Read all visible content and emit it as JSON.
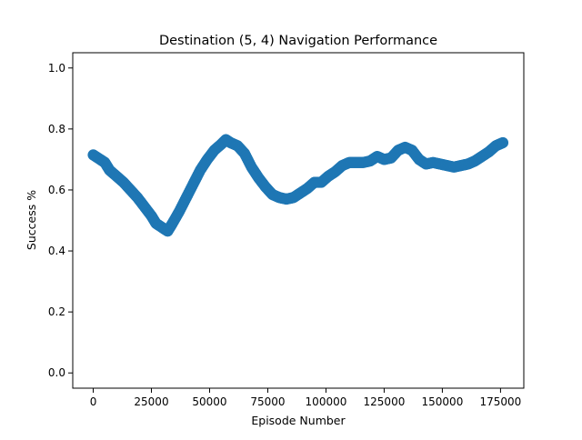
{
  "chart_data": {
    "type": "scatter",
    "title": "Destination (5, 4) Navigation Performance",
    "xlabel": "Episode Number",
    "ylabel": "Success %",
    "xlim": [
      -8800,
      185000
    ],
    "ylim": [
      -0.05,
      1.05
    ],
    "x_ticks": [
      0,
      25000,
      50000,
      75000,
      100000,
      125000,
      150000,
      175000
    ],
    "y_ticks": [
      0.0,
      0.2,
      0.4,
      0.6,
      0.8,
      1.0
    ],
    "x_tick_labels": [
      "0",
      "25000",
      "50000",
      "75000",
      "100000",
      "125000",
      "150000",
      "175000"
    ],
    "y_tick_labels": [
      "0.0",
      "0.2",
      "0.4",
      "0.6",
      "0.8",
      "1.0"
    ],
    "grid": false,
    "legend": "none",
    "marker_color": "#1f77b4",
    "series": [
      {
        "x": [
          0,
          3000,
          5000,
          7000,
          10000,
          13000,
          16000,
          19000,
          22000,
          25000,
          27000,
          30000,
          32000,
          34000,
          37000,
          40000,
          43000,
          46000,
          49000,
          52000,
          55000,
          57000,
          59000,
          62000,
          65000,
          68000,
          71000,
          74000,
          77000,
          80000,
          83000,
          86000,
          89000,
          92000,
          95000,
          98000,
          101000,
          104000,
          107000,
          110000,
          113000,
          116000,
          119000,
          122000,
          125000,
          128000,
          131000,
          134000,
          137000,
          140000,
          143000,
          146000,
          149000,
          152000,
          155000,
          158000,
          161000,
          164000,
          167000,
          170000,
          173000,
          176000
        ],
        "y": [
          0.715,
          0.7,
          0.69,
          0.665,
          0.645,
          0.625,
          0.6,
          0.575,
          0.545,
          0.515,
          0.49,
          0.475,
          0.465,
          0.49,
          0.53,
          0.575,
          0.62,
          0.665,
          0.7,
          0.73,
          0.75,
          0.765,
          0.755,
          0.745,
          0.72,
          0.675,
          0.64,
          0.61,
          0.585,
          0.575,
          0.57,
          0.575,
          0.59,
          0.605,
          0.625,
          0.625,
          0.645,
          0.66,
          0.68,
          0.69,
          0.69,
          0.69,
          0.695,
          0.71,
          0.7,
          0.705,
          0.73,
          0.74,
          0.73,
          0.7,
          0.685,
          0.69,
          0.685,
          0.68,
          0.675,
          0.68,
          0.685,
          0.695,
          0.71,
          0.725,
          0.745,
          0.755
        ]
      }
    ]
  }
}
